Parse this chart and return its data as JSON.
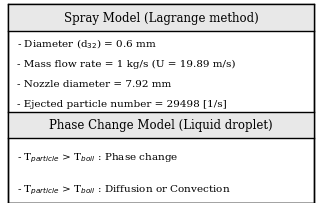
{
  "title1": "Spray Model (Lagrange method)",
  "body1_lines": [
    "- Diameter (d$_{32}$) = 0.6 mm",
    "- Mass flow rate = 1 kg/s (U = 19.89 m/s)",
    "- Nozzle diameter = 7.92 mm",
    "- Ejected particle number = 29498 [1/s]"
  ],
  "title2": "Phase Change Model (Liquid droplet)",
  "body2_lines": [
    "- T$_{particle}$ > T$_{boil}$ : Phase change",
    "- T$_{particle}$ > T$_{boil}$ : Diffusion or Convection"
  ],
  "bg_color": "#ffffff",
  "header_bg": "#e8e8e8",
  "border_color": "#000000",
  "text_color": "#000000",
  "title_fontsize": 8.5,
  "body_fontsize": 7.5
}
